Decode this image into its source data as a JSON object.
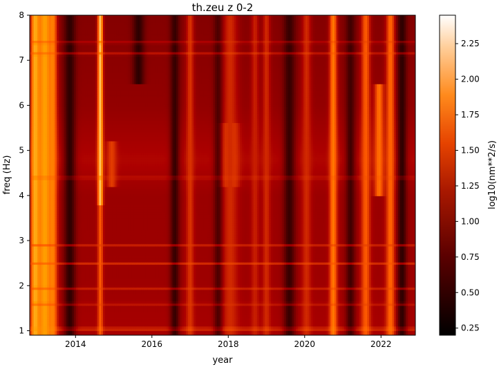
{
  "chart_data": {
    "type": "heatmap",
    "title": "th.zeu z 0-2",
    "xlabel": "year",
    "ylabel": "freq (Hz)",
    "xlim": [
      2012.8,
      2022.9
    ],
    "ylim": [
      0.9,
      8.0
    ],
    "x_ticks": [
      2014,
      2016,
      2018,
      2020,
      2022
    ],
    "x_tick_labels": [
      "2014",
      "2016",
      "2018",
      "2020",
      "2022"
    ],
    "y_ticks": [
      1,
      2,
      3,
      4,
      5,
      6,
      7,
      8
    ],
    "y_tick_labels": [
      "1",
      "2",
      "3",
      "4",
      "5",
      "6",
      "7",
      "8"
    ],
    "colorbar": {
      "label": "log10(nm**2/s)",
      "colormap": "gist_heat",
      "range": [
        0.2,
        2.45
      ],
      "ticks": [
        0.25,
        0.5,
        0.75,
        1.0,
        1.25,
        1.5,
        1.75,
        2.0,
        2.25
      ],
      "tick_labels": [
        "0.25",
        "0.50",
        "0.75",
        "1.00",
        "1.25",
        "1.50",
        "1.75",
        "2.00",
        "2.25"
      ]
    },
    "background_level": 1.05,
    "freq_profile": [
      {
        "freq": 0.9,
        "delta": 0.08
      },
      {
        "freq": 2.0,
        "delta": 0.02
      },
      {
        "freq": 4.0,
        "delta": 0.0
      },
      {
        "freq": 4.8,
        "delta": 0.12
      },
      {
        "freq": 6.0,
        "delta": -0.04
      },
      {
        "freq": 8.0,
        "delta": -0.12
      }
    ],
    "time_features": [
      {
        "year": 2012.95,
        "width": 0.12,
        "level": 2.05,
        "fmin": 0.9,
        "fmax": 8.0
      },
      {
        "year": 2013.2,
        "width": 0.22,
        "level": 1.95,
        "fmin": 0.9,
        "fmax": 8.0
      },
      {
        "year": 2013.4,
        "width": 0.1,
        "level": 1.8,
        "fmin": 0.9,
        "fmax": 8.0
      },
      {
        "year": 2013.85,
        "width": 0.15,
        "level": 0.45,
        "fmin": 0.9,
        "fmax": 8.0
      },
      {
        "year": 2014.65,
        "width": 0.07,
        "level": 2.15,
        "fmin": 3.8,
        "fmax": 8.0
      },
      {
        "year": 2014.65,
        "width": 0.07,
        "level": 1.6,
        "fmin": 0.9,
        "fmax": 3.8
      },
      {
        "year": 2014.95,
        "width": 0.12,
        "level": 1.45,
        "fmin": 4.2,
        "fmax": 5.2
      },
      {
        "year": 2015.65,
        "width": 0.15,
        "level": 0.45,
        "fmin": 6.5,
        "fmax": 8.0
      },
      {
        "year": 2016.6,
        "width": 0.12,
        "level": 0.5,
        "fmin": 0.9,
        "fmax": 8.0
      },
      {
        "year": 2017.0,
        "width": 0.1,
        "level": 1.4,
        "fmin": 0.9,
        "fmax": 8.0
      },
      {
        "year": 2017.75,
        "width": 0.12,
        "level": 0.55,
        "fmin": 0.9,
        "fmax": 8.0
      },
      {
        "year": 2018.05,
        "width": 0.18,
        "level": 1.7,
        "fmin": 4.2,
        "fmax": 5.6
      },
      {
        "year": 2018.05,
        "width": 0.2,
        "level": 1.35,
        "fmin": 0.9,
        "fmax": 8.0
      },
      {
        "year": 2018.7,
        "width": 0.1,
        "level": 1.3,
        "fmin": 0.9,
        "fmax": 8.0
      },
      {
        "year": 2019.0,
        "width": 0.1,
        "level": 1.35,
        "fmin": 0.9,
        "fmax": 8.0
      },
      {
        "year": 2019.6,
        "width": 0.15,
        "level": 0.5,
        "fmin": 0.9,
        "fmax": 8.0
      },
      {
        "year": 2020.05,
        "width": 0.12,
        "level": 1.35,
        "fmin": 0.9,
        "fmax": 8.0
      },
      {
        "year": 2020.75,
        "width": 0.1,
        "level": 1.75,
        "fmin": 0.9,
        "fmax": 8.0
      },
      {
        "year": 2021.2,
        "width": 0.12,
        "level": 0.55,
        "fmin": 0.9,
        "fmax": 8.0
      },
      {
        "year": 2021.6,
        "width": 0.12,
        "level": 1.6,
        "fmin": 0.9,
        "fmax": 8.0
      },
      {
        "year": 2021.95,
        "width": 0.12,
        "level": 1.7,
        "fmin": 4.0,
        "fmax": 6.5
      },
      {
        "year": 2022.25,
        "width": 0.12,
        "level": 1.65,
        "fmin": 0.9,
        "fmax": 8.0
      },
      {
        "year": 2022.55,
        "width": 0.12,
        "level": 0.45,
        "fmin": 0.9,
        "fmax": 8.0
      }
    ],
    "freq_lines": [
      {
        "freq": 1.05,
        "level": 1.9
      },
      {
        "freq": 1.6,
        "level": 1.45
      },
      {
        "freq": 1.95,
        "level": 1.5
      },
      {
        "freq": 2.5,
        "level": 1.55
      },
      {
        "freq": 2.9,
        "level": 1.45
      },
      {
        "freq": 4.4,
        "level": 1.5
      },
      {
        "freq": 7.15,
        "level": 1.55
      },
      {
        "freq": 7.4,
        "level": 1.45
      }
    ]
  }
}
